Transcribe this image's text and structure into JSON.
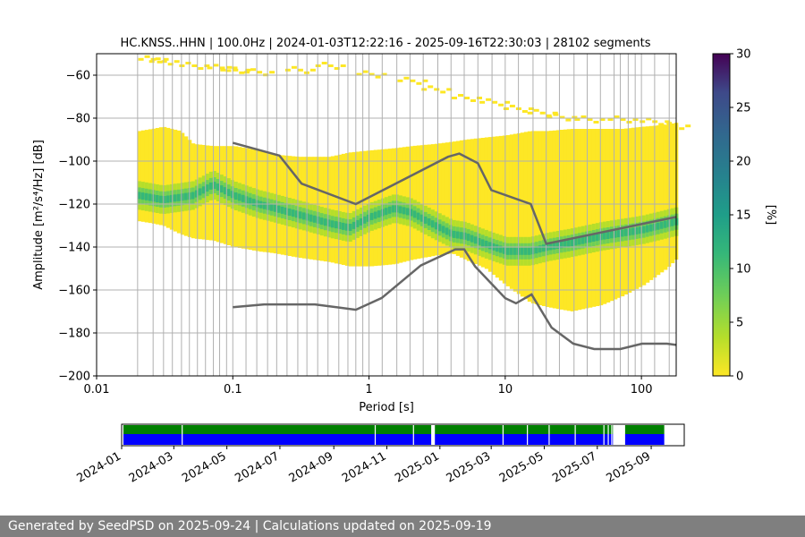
{
  "chart_data": {
    "type": "heatmap",
    "title": "HC.KNSS..HHN | 100.0Hz | 2024-01-03T12:22:16 - 2025-09-16T22:30:03 | 28102 segments",
    "xlabel": "Period [s]",
    "ylabel": "Amplitude [m²/s⁴/Hz] [dB]",
    "xscale": "log",
    "xlim": [
      0.01,
      180
    ],
    "ylim": [
      -200,
      -50
    ],
    "xticks": [
      {
        "value": 0.01,
        "label": "0.01"
      },
      {
        "value": 0.1,
        "label": "0.1"
      },
      {
        "value": 1,
        "label": "1"
      },
      {
        "value": 10,
        "label": "10"
      },
      {
        "value": 100,
        "label": "100"
      }
    ],
    "yticks": [
      -200,
      -180,
      -160,
      -140,
      -120,
      -100,
      -80,
      -60
    ],
    "period_grid_lines": [
      0.02,
      0.026,
      0.031,
      0.036,
      0.042,
      0.048,
      0.055,
      0.063,
      0.072,
      0.08,
      0.09,
      0.1,
      0.125,
      0.15,
      0.18,
      0.21,
      0.25,
      0.3,
      0.35,
      0.42,
      0.5,
      0.6,
      0.7,
      0.8,
      0.9,
      1.0,
      1.25,
      1.6,
      2,
      2.5,
      3.2,
      4,
      5,
      6.3,
      8,
      10,
      12.5,
      16,
      20,
      25,
      32,
      40,
      50,
      63,
      70,
      80,
      90,
      100,
      125,
      160
    ],
    "colorbar": {
      "label": "[%]",
      "min": 0,
      "max": 30,
      "ticks": [
        0,
        5,
        10,
        15,
        20,
        25,
        30
      ],
      "colormap": "viridis-reversed"
    },
    "density_envelope": {
      "period": [
        0.02,
        0.025,
        0.03,
        0.04,
        0.05,
        0.07,
        0.1,
        0.15,
        0.2,
        0.3,
        0.5,
        0.7,
        1.0,
        1.5,
        2,
        3,
        4,
        5,
        7,
        10,
        15,
        20,
        30,
        50,
        70,
        100,
        150,
        180
      ],
      "upper_db": [
        -86,
        -85,
        -84,
        -86,
        -92,
        -93,
        -93,
        -95,
        -97,
        -98,
        -98,
        -96,
        -95,
        -94,
        -93,
        -92,
        -91,
        -90,
        -89,
        -88,
        -86,
        -86,
        -85,
        -85,
        -85,
        -84,
        -83,
        -82
      ],
      "lower_db": [
        -128,
        -129,
        -130,
        -134,
        -136,
        -137,
        -140,
        -142,
        -143,
        -145,
        -147,
        -149,
        -149,
        -148,
        -146,
        -144,
        -143,
        -146,
        -150,
        -158,
        -166,
        -168,
        -170,
        -167,
        -163,
        -158,
        -150,
        -145
      ]
    },
    "mode_line": {
      "period": [
        0.02,
        0.03,
        0.05,
        0.07,
        0.1,
        0.15,
        0.2,
        0.3,
        0.5,
        0.7,
        1.0,
        1.5,
        2,
        3,
        4,
        5,
        6,
        8,
        10,
        15,
        20,
        30,
        50,
        100,
        180
      ],
      "db": [
        -116,
        -118,
        -116,
        -111,
        -116,
        -120,
        -122,
        -125,
        -129,
        -131,
        -126,
        -122,
        -124,
        -130,
        -134,
        -135,
        -137,
        -140,
        -142,
        -142,
        -140,
        -138,
        -135,
        -132,
        -128
      ]
    },
    "scatter_outliers": {
      "period": [
        0.025,
        0.03,
        0.05,
        0.08,
        0.1,
        0.15,
        0.3,
        0.5,
        1,
        2,
        3,
        5,
        8,
        12,
        18,
        25,
        40,
        70,
        120,
        170
      ],
      "db": [
        -52,
        -53,
        -55,
        -56,
        -57,
        -58,
        -57,
        -55,
        -59,
        -62,
        -66,
        -70,
        -72,
        -75,
        -77,
        -79,
        -80,
        -80,
        -81,
        -83
      ]
    },
    "nlnm_nhnm": {
      "high": {
        "period": [
          0.1,
          0.22,
          0.32,
          0.8,
          3.8,
          4.6,
          6.3,
          7.9,
          15.4,
          20,
          354.8
        ],
        "db": [
          -91.5,
          -97.4,
          -110.5,
          -120,
          -98,
          -96.5,
          -101,
          -113.5,
          -120,
          -138.5,
          -126
        ]
      },
      "low": {
        "period": [
          0.1,
          0.17,
          0.4,
          0.8,
          1.24,
          2.4,
          4.3,
          5,
          6,
          10,
          12,
          15.6,
          21.9,
          31.6,
          45,
          70,
          101,
          154,
          180
        ],
        "db": [
          -168,
          -166.7,
          -166.7,
          -169.2,
          -163.7,
          -148.6,
          -141.1,
          -141.1,
          -149,
          -163.8,
          -166.2,
          -162.1,
          -177.5,
          -185,
          -187.5,
          -187.5,
          -185,
          -185,
          -185.6
        ]
      }
    },
    "timeline": {
      "xlabels": [
        "2024-01",
        "2024-03",
        "2024-05",
        "2024-07",
        "2024-09",
        "2024-11",
        "2025-01",
        "2025-03",
        "2025-05",
        "2025-07",
        "2025-09"
      ],
      "range": [
        "2024-01-01",
        "2025-10-09"
      ],
      "data_start": "2024-01-03",
      "data_end": "2025-09-16",
      "colors": {
        "available": "#008000",
        "coverage": "#0000ff"
      },
      "gaps": [
        "2024-03-10",
        "2024-10-18",
        "2024-12-01",
        "2024-12-25",
        "2025-03-14",
        "2025-04-11",
        "2025-05-06",
        "2025-06-05",
        "2025-07-08",
        "2025-07-13",
        "2025-07-17"
      ],
      "big_gaps": [
        [
          "2024-12-22",
          "2024-12-26"
        ],
        [
          "2025-07-19",
          "2025-08-02"
        ]
      ]
    }
  },
  "footer": "Generated by SeedPSD on 2025-09-24 | Calculations updated on 2025-09-19"
}
